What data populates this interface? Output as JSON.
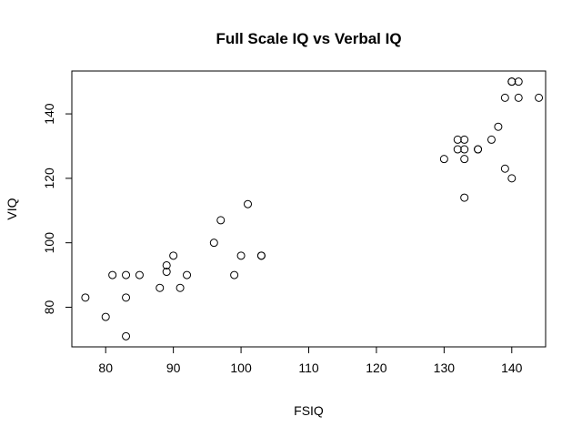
{
  "chart_data": {
    "type": "scatter",
    "title": "Full Scale IQ vs Verbal IQ",
    "xlabel": "FSIQ",
    "ylabel": "VIQ",
    "xlim": [
      75,
      145
    ],
    "ylim": [
      67.7,
      153.3
    ],
    "xticks": [
      80,
      90,
      100,
      110,
      120,
      130,
      140
    ],
    "yticks": [
      80,
      100,
      120,
      140
    ],
    "grid": false,
    "legend": "none",
    "points": [
      {
        "x": 77,
        "y": 83
      },
      {
        "x": 80,
        "y": 77
      },
      {
        "x": 81,
        "y": 90
      },
      {
        "x": 83,
        "y": 90
      },
      {
        "x": 83,
        "y": 83
      },
      {
        "x": 83,
        "y": 71
      },
      {
        "x": 85,
        "y": 90
      },
      {
        "x": 88,
        "y": 86
      },
      {
        "x": 89,
        "y": 93
      },
      {
        "x": 89,
        "y": 91
      },
      {
        "x": 90,
        "y": 96
      },
      {
        "x": 91,
        "y": 86
      },
      {
        "x": 92,
        "y": 90
      },
      {
        "x": 96,
        "y": 100
      },
      {
        "x": 97,
        "y": 107
      },
      {
        "x": 99,
        "y": 90
      },
      {
        "x": 100,
        "y": 96
      },
      {
        "x": 101,
        "y": 112
      },
      {
        "x": 103,
        "y": 96
      },
      {
        "x": 103,
        "y": 96
      },
      {
        "x": 130,
        "y": 126
      },
      {
        "x": 132,
        "y": 132
      },
      {
        "x": 132,
        "y": 129
      },
      {
        "x": 133,
        "y": 132
      },
      {
        "x": 133,
        "y": 129
      },
      {
        "x": 133,
        "y": 126
      },
      {
        "x": 133,
        "y": 114
      },
      {
        "x": 135,
        "y": 129
      },
      {
        "x": 135,
        "y": 129
      },
      {
        "x": 137,
        "y": 132
      },
      {
        "x": 138,
        "y": 136
      },
      {
        "x": 139,
        "y": 145
      },
      {
        "x": 139,
        "y": 123
      },
      {
        "x": 140,
        "y": 150
      },
      {
        "x": 140,
        "y": 150
      },
      {
        "x": 140,
        "y": 120
      },
      {
        "x": 141,
        "y": 150
      },
      {
        "x": 141,
        "y": 145
      },
      {
        "x": 144,
        "y": 145
      }
    ]
  }
}
